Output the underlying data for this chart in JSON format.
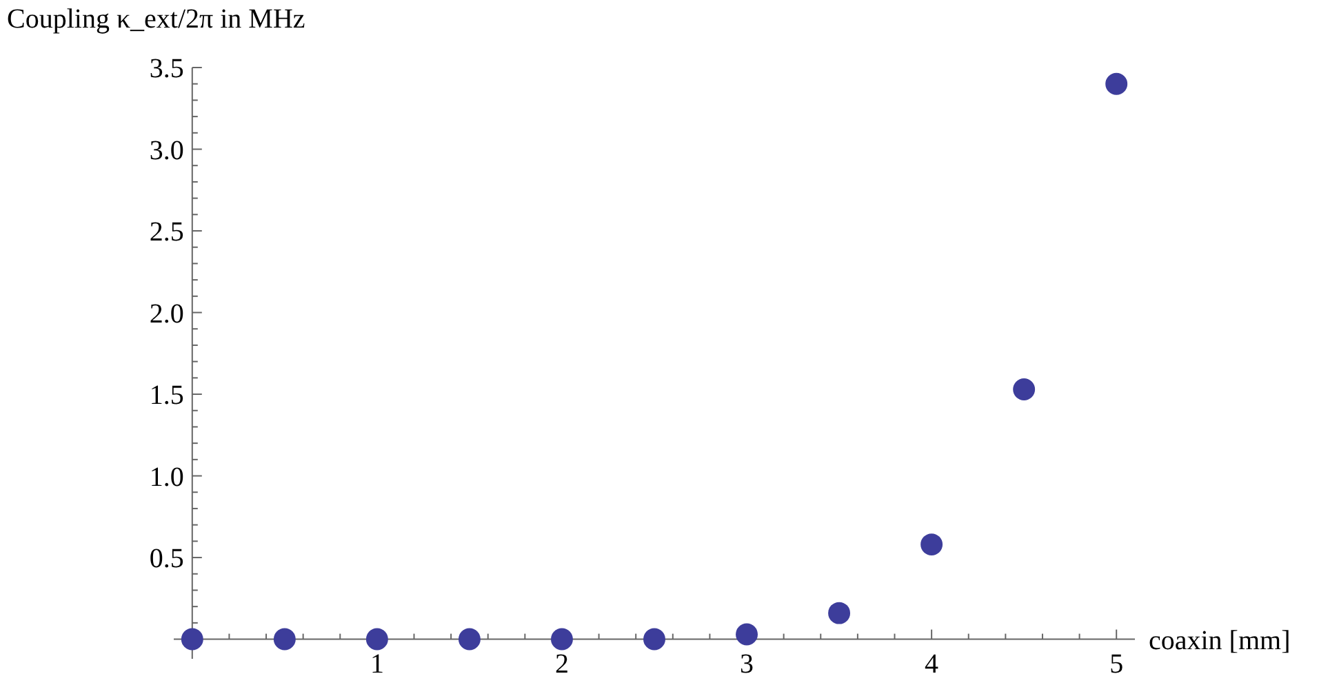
{
  "chart_data": {
    "type": "scatter",
    "xlabel": "coaxin [mm]",
    "ylabel": "Coupling κ_ext/2π in MHz",
    "x": [
      0,
      0.5,
      1,
      1.5,
      2,
      2.5,
      3,
      3.5,
      4,
      4.5,
      5
    ],
    "series": [
      {
        "color": "#3d3d9b",
        "values": [
          0,
          0,
          0,
          0,
          0,
          0,
          0.03,
          0.16,
          0.58,
          1.53,
          3.4
        ]
      }
    ],
    "marker": "circle",
    "grid": false,
    "xlim": [
      -0.1,
      5.1
    ],
    "ylim": [
      -0.12,
      3.5
    ],
    "xticks": [
      {
        "value": 0.2,
        "label": null
      },
      {
        "value": 0.4,
        "label": null
      },
      {
        "value": 0.6,
        "label": null
      },
      {
        "value": 0.8,
        "label": null
      },
      1,
      {
        "value": 1.2,
        "label": null
      },
      {
        "value": 1.4,
        "label": null
      },
      {
        "value": 1.6,
        "label": null
      },
      {
        "value": 1.8,
        "label": null
      },
      2,
      {
        "value": 2.2,
        "label": null
      },
      {
        "value": 2.4,
        "label": null
      },
      {
        "value": 2.6,
        "label": null
      },
      {
        "value": 2.8,
        "label": null
      },
      3,
      {
        "value": 3.2,
        "label": null
      },
      {
        "value": 3.4,
        "label": null
      },
      {
        "value": 3.6,
        "label": null
      },
      {
        "value": 3.8,
        "label": null
      },
      4,
      {
        "value": 4.2,
        "label": null
      },
      {
        "value": 4.4,
        "label": null
      },
      {
        "value": 4.6,
        "label": null
      },
      {
        "value": 4.8,
        "label": null
      },
      5
    ],
    "yticks": [
      {
        "value": 0.1,
        "label": null
      },
      {
        "value": 0.2,
        "label": null
      },
      {
        "value": 0.3,
        "label": null
      },
      {
        "value": 0.4,
        "label": null
      },
      {
        "value": 0.5,
        "label": "0.5"
      },
      {
        "value": 0.6,
        "label": null
      },
      {
        "value": 0.7,
        "label": null
      },
      {
        "value": 0.8,
        "label": null
      },
      {
        "value": 0.9,
        "label": null
      },
      {
        "value": 1,
        "label": "1.0"
      },
      {
        "value": 1.1,
        "label": null
      },
      {
        "value": 1.2,
        "label": null
      },
      {
        "value": 1.3,
        "label": null
      },
      {
        "value": 1.4,
        "label": null
      },
      1.5,
      {
        "value": 1.6,
        "label": null
      },
      {
        "value": 1.7,
        "label": null
      },
      {
        "value": 1.8,
        "label": null
      },
      {
        "value": 1.9,
        "label": null
      },
      {
        "value": 2,
        "label": "2.0"
      },
      {
        "value": 2.1,
        "label": null
      },
      {
        "value": 2.2,
        "label": null
      },
      {
        "value": 2.3,
        "label": null
      },
      {
        "value": 2.4,
        "label": null
      },
      2.5,
      {
        "value": 2.6,
        "label": null
      },
      {
        "value": 2.7,
        "label": null
      },
      {
        "value": 2.8,
        "label": null
      },
      {
        "value": 2.9,
        "label": null
      },
      {
        "value": 3,
        "label": "3.0"
      },
      {
        "value": 3.1,
        "label": null
      },
      {
        "value": 3.2,
        "label": null
      },
      {
        "value": 3.3,
        "label": null
      },
      {
        "value": 3.4,
        "label": null
      },
      3.5
    ]
  }
}
